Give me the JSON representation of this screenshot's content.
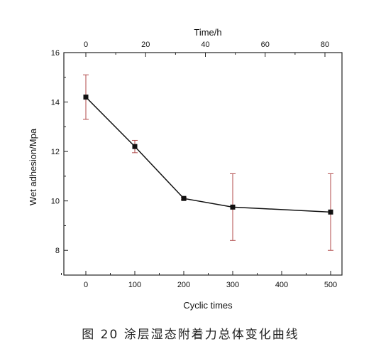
{
  "colors": {
    "line": "#111111",
    "marker": "#111111",
    "errorbar": "#b04a4a",
    "axis": "#222222",
    "background": "#ffffff"
  },
  "caption": "图 20 涂层湿态附着力总体变化曲线",
  "chart_data": {
    "type": "line",
    "xlabel": "Cyclic times",
    "ylabel": "Wet adhesion/Mpa",
    "top_axis_label": "Time/h",
    "x_ticks": [
      "0",
      "100",
      "200",
      "300",
      "400",
      "500"
    ],
    "x_top_ticks": [
      "0",
      "20",
      "40",
      "60",
      "80"
    ],
    "y_ticks": [
      "8",
      "10",
      "12",
      "14",
      "16"
    ],
    "ylim": [
      7,
      16
    ],
    "categories": [
      "0",
      "100",
      "200",
      "300",
      "500"
    ],
    "series": [
      {
        "values": [
          14.2,
          12.2,
          10.1,
          9.75,
          9.55
        ],
        "errors": [
          0.9,
          0.25,
          0.05,
          1.35,
          1.55
        ]
      }
    ],
    "grid": false,
    "legend": "none"
  }
}
